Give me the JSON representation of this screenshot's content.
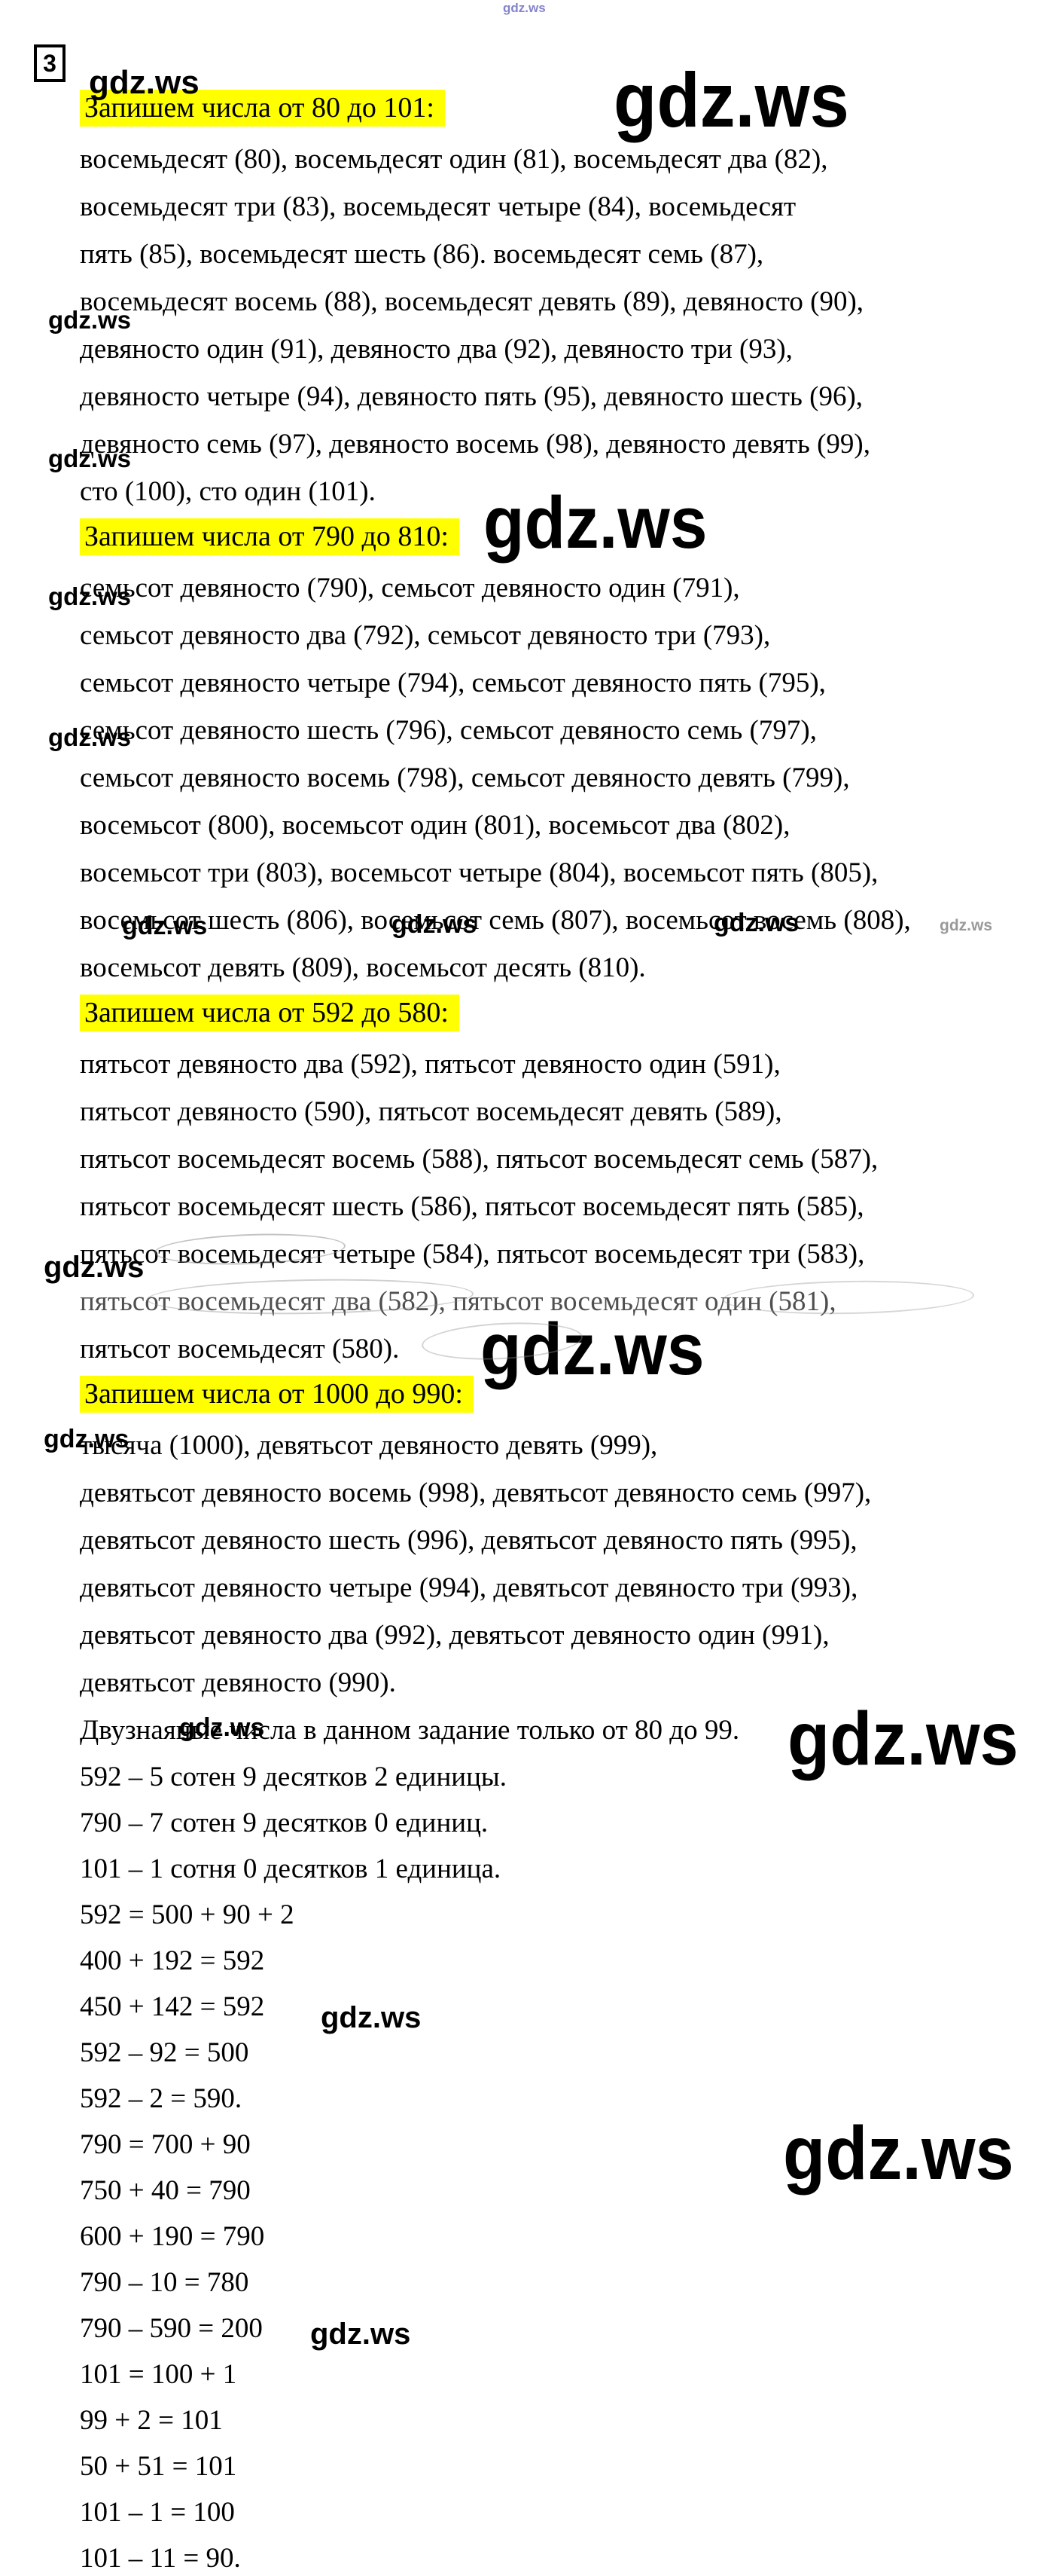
{
  "page_label": {
    "number": "3"
  },
  "watermark_text": "gdz.ws",
  "sections": [
    {
      "heading": "Запишем числа от 80 до 101:",
      "lines": [
        "восемьдесят (80), восемьдесят один (81), восемьдесят два (82),",
        "восемьдесят три (83), восемьдесят четыре (84), восемьдесят",
        "пять (85), восемьдесят шесть (86). восемьдесят семь (87),",
        "восемьдесят восемь (88), восемьдесят девять (89), девяносто (90),",
        "девяносто один (91), девяносто два (92), девяносто три (93),",
        "девяносто четыре (94), девяносто пять (95), девяносто шесть (96),",
        "девяносто семь (97), девяносто восемь (98), девяносто девять (99),",
        "сто (100), сто один (101)."
      ]
    },
    {
      "heading": "Запишем числа от 790 до 810:",
      "lines": [
        "семьсот девяносто (790), семьсот девяносто один (791),",
        "семьсот девяносто два (792), семьсот девяносто три (793),",
        "семьсот девяносто четыре (794), семьсот девяносто пять (795),",
        "семьсот девяносто шесть (796), семьсот девяносто семь (797),",
        "семьсот девяносто восемь (798), семьсот девяносто девять (799),",
        "восемьсот (800), восемьсот один (801), восемьсот два (802),",
        "восемьсот три (803), восемьсот четыре (804), восемьсот пять (805),",
        "восемьсот шесть (806), восемьсот семь (807), восемьсот восемь (808),",
        "восемьсот девять (809), восемьсот десять (810)."
      ]
    },
    {
      "heading": "Запишем числа от 592 до 580:",
      "lines": [
        "пятьсот девяносто два (592), пятьсот девяносто один (591),",
        "пятьсот девяносто (590), пятьсот восемьдесят девять (589),",
        "пятьсот восемьдесят восемь (588), пятьсот восемьдесят семь (587),",
        "пятьсот восемьдесят шесть (586), пятьсот восемьдесят пять (585),",
        "пятьсот восемьдесят четыре (584), пятьсот восемьдесят три (583),",
        "пятьсот восемьдесят два (582), пятьсот восемьдесят один (581),",
        "пятьсот восемьдесят (580)."
      ]
    },
    {
      "heading": "Запишем числа от 1000 до 990:",
      "lines": [
        "тысяча (1000), девятьсот девяносто девять (999),",
        "девятьсот девяносто восемь (998), девятьсот девяносто семь (997),",
        "девятьсот девяносто шесть (996), девятьсот девяносто пять (995),",
        "девятьсот девяносто четыре (994), девятьсот девяносто три (993),",
        "девятьсот девяносто два (992), девятьсот девяносто один (991),",
        "девятьсот девяносто (990)."
      ]
    }
  ],
  "note": "Двузнаяные числа в данном задание только от 80 до 99.",
  "equations": [
    "592 – 5 сотен 9 десятков 2 единицы.",
    "790 – 7 сотен 9 десятков 0 единиц.",
    "101 – 1 сотня 0 десятков 1 единица.",
    "592 = 500 + 90 + 2",
    "400 + 192 = 592",
    "450 + 142 = 592",
    "592 – 92 = 500",
    "592 – 2 = 590.",
    "790 = 700 + 90",
    "750 + 40 = 790",
    "600 + 190 = 790",
    "790 – 10 = 780",
    "790 – 590 = 200",
    "101 = 100 + 1",
    "99 + 2 = 101",
    "50 + 51 = 101",
    "101 – 1 = 100",
    "101 – 11 = 90."
  ]
}
